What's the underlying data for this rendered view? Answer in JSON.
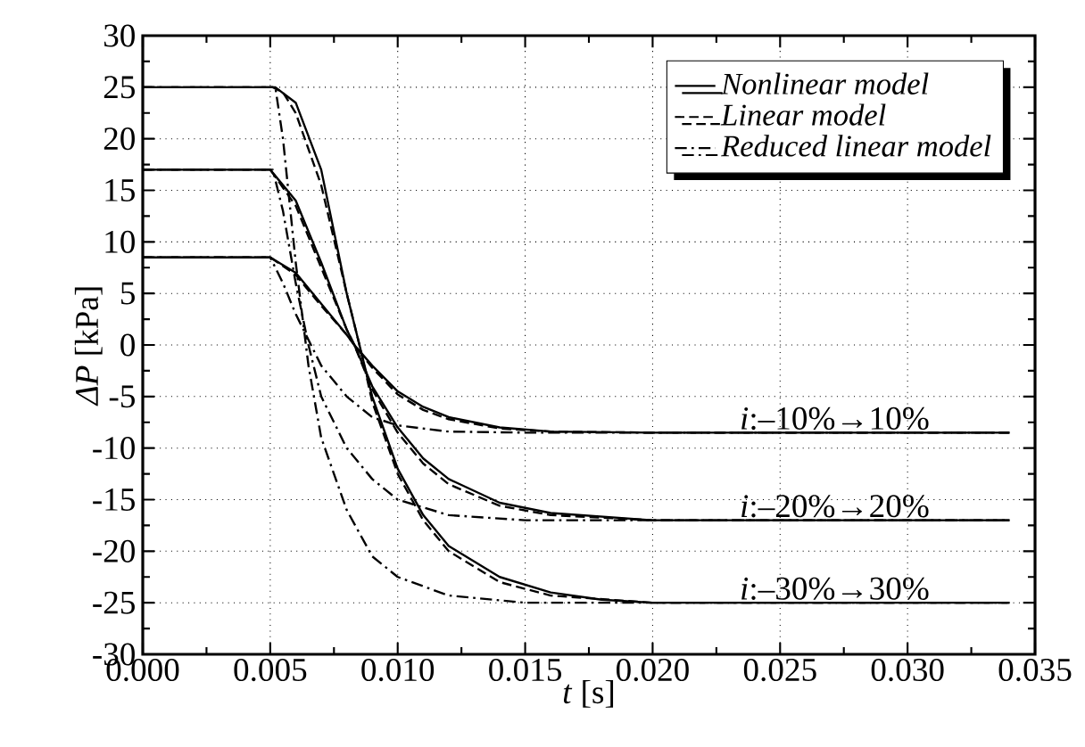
{
  "chart_data": {
    "type": "line",
    "xlabel": "*t* [s]",
    "ylabel": "*ΔP* [kPa]",
    "xlim": [
      0,
      0.035
    ],
    "ylim": [
      -30,
      30
    ],
    "xticks": [
      {
        "value": 0,
        "label": "0.000"
      },
      {
        "value": 0.005,
        "label": "0.005"
      },
      {
        "value": 0.01,
        "label": "0.010"
      },
      {
        "value": 0.015,
        "label": "0.015"
      },
      {
        "value": 0.02,
        "label": "0.020"
      },
      {
        "value": 0.025,
        "label": "0.025"
      },
      {
        "value": 0.03,
        "label": "0.030"
      },
      {
        "value": 0.035,
        "label": "0.035"
      }
    ],
    "yticks": [
      -30,
      -25,
      -20,
      -15,
      -10,
      -5,
      0,
      5,
      10,
      15,
      20,
      25,
      30
    ],
    "grid": true,
    "legend": "top right",
    "annotations": [
      {
        "text": "*i*:–10%→10%",
        "y": -8.5
      },
      {
        "text": "*i*:–20%→20%",
        "y": -17
      },
      {
        "text": "*i*:–30%→30%",
        "y": -25
      }
    ],
    "series": [
      {
        "name": "Nonlinear model",
        "color": "#000000",
        "line_style": "solid",
        "x": [
          0,
          0.0052,
          0.006,
          0.007,
          0.008,
          0.0085,
          0.009,
          0.01,
          0.011,
          0.012,
          0.014,
          0.016,
          0.018,
          0.02,
          0.034
        ],
        "values": [
          25,
          25,
          23.5,
          17,
          5,
          0,
          -5,
          -12,
          -16.5,
          -19.5,
          -22.5,
          -24,
          -24.7,
          -25,
          -25
        ]
      },
      {
        "name": "Linear model",
        "color": "#000000",
        "line_style": "dashed",
        "x": [
          0,
          0.0051,
          0.0055,
          0.006,
          0.007,
          0.008,
          0.0085,
          0.009,
          0.01,
          0.011,
          0.012,
          0.014,
          0.016,
          0.02,
          0.034
        ],
        "values": [
          25,
          25,
          24.5,
          22.5,
          15.5,
          5,
          0,
          -5.5,
          -12.5,
          -17,
          -20,
          -23,
          -24.3,
          -25,
          -25
        ]
      },
      {
        "name": "Reduced linear model",
        "color": "#000000",
        "line_style": "dashdot",
        "x": [
          0,
          0.0052,
          0.0055,
          0.006,
          0.0065,
          0.007,
          0.008,
          0.009,
          0.01,
          0.012,
          0.015,
          0.034
        ],
        "values": [
          25,
          25,
          20,
          8,
          -2,
          -9,
          -16,
          -20.5,
          -22.5,
          -24.3,
          -25,
          -25
        ]
      },
      {
        "color": "#000000",
        "line_style": "solid",
        "x": [
          0,
          0.005,
          0.006,
          0.007,
          0.008,
          0.0083,
          0.009,
          0.01,
          0.011,
          0.012,
          0.014,
          0.016,
          0.02,
          0.034
        ],
        "values": [
          17,
          17,
          14,
          8,
          1.5,
          0,
          -4,
          -8,
          -11,
          -13,
          -15.3,
          -16.3,
          -17,
          -17
        ]
      },
      {
        "color": "#000000",
        "line_style": "dashed",
        "x": [
          0,
          0.005,
          0.006,
          0.007,
          0.008,
          0.0083,
          0.009,
          0.01,
          0.011,
          0.012,
          0.014,
          0.016,
          0.02,
          0.034
        ],
        "values": [
          17,
          17,
          13.5,
          7.5,
          1.5,
          0,
          -4.3,
          -8.5,
          -11.5,
          -13.5,
          -15.6,
          -16.5,
          -17,
          -17
        ]
      },
      {
        "color": "#000000",
        "line_style": "dashdot",
        "x": [
          0,
          0.0051,
          0.0055,
          0.006,
          0.0065,
          0.007,
          0.008,
          0.009,
          0.01,
          0.012,
          0.015,
          0.034
        ],
        "values": [
          17,
          17,
          13,
          6,
          0,
          -5,
          -10,
          -13,
          -15,
          -16.5,
          -17,
          -17
        ]
      },
      {
        "color": "#000000",
        "line_style": "solid",
        "x": [
          0,
          0.005,
          0.006,
          0.007,
          0.008,
          0.0083,
          0.009,
          0.01,
          0.011,
          0.012,
          0.014,
          0.016,
          0.02,
          0.034
        ],
        "values": [
          8.5,
          8.5,
          7,
          4,
          1,
          0,
          -2,
          -4.5,
          -6,
          -7,
          -8,
          -8.4,
          -8.5,
          -8.5
        ]
      },
      {
        "color": "#000000",
        "line_style": "dashed",
        "x": [
          0,
          0.005,
          0.006,
          0.007,
          0.008,
          0.0083,
          0.009,
          0.01,
          0.011,
          0.012,
          0.014,
          0.016,
          0.02,
          0.034
        ],
        "values": [
          8.5,
          8.5,
          6.8,
          3.8,
          1,
          0,
          -2.2,
          -4.8,
          -6.3,
          -7.2,
          -8.1,
          -8.4,
          -8.5,
          -8.5
        ]
      },
      {
        "color": "#000000",
        "line_style": "dashdot",
        "x": [
          0,
          0.005,
          0.0055,
          0.006,
          0.007,
          0.008,
          0.009,
          0.01,
          0.012,
          0.015,
          0.034
        ],
        "values": [
          8.5,
          8.5,
          6,
          3,
          -2,
          -5,
          -7,
          -7.8,
          -8.4,
          -8.5,
          -8.5
        ]
      }
    ]
  }
}
